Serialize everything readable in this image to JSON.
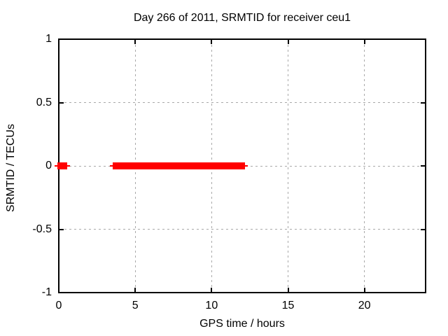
{
  "colors": {
    "series_red": "#ff0000",
    "grid_gray": "#a9a9a9",
    "axis_black": "#000000",
    "background": "#ffffff"
  },
  "chart_data": {
    "type": "line",
    "title": "Day 266 of 2011, SRMTID for receiver ceu1",
    "xlabel": "GPS time / hours",
    "ylabel": "SRMTID / TECUs",
    "xlim": [
      0,
      24
    ],
    "ylim": [
      -1,
      1
    ],
    "grid": "dashed",
    "legend": "none",
    "xticks": [
      {
        "value": 0,
        "label": "0"
      },
      {
        "value": 5,
        "label": "5"
      },
      {
        "value": 10,
        "label": "10"
      },
      {
        "value": 15,
        "label": "15"
      },
      {
        "value": 20,
        "label": "20"
      }
    ],
    "yticks": [
      {
        "value": -1,
        "label": "-1"
      },
      {
        "value": -0.5,
        "label": "-0.5"
      },
      {
        "value": 0,
        "label": "0"
      },
      {
        "value": 0.5,
        "label": "0.5"
      },
      {
        "value": 1,
        "label": "1"
      }
    ],
    "series": [
      {
        "name": "SRMTID",
        "color": "#ff0000",
        "style": "thick-line",
        "y": 0,
        "segments": [
          {
            "x_start": 0,
            "x_end": 0.45
          },
          {
            "x_start": 3.65,
            "x_end": 12.05
          }
        ]
      }
    ]
  }
}
